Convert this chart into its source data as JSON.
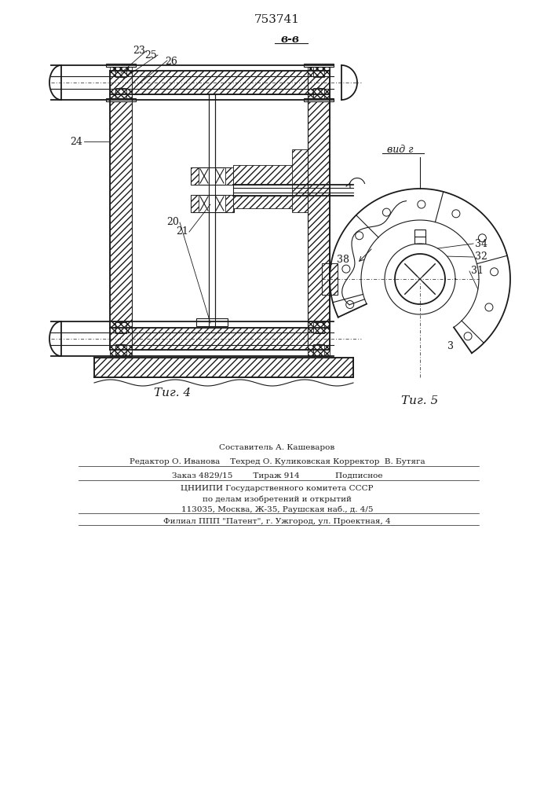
{
  "patent_number": "753741",
  "fig4_caption": "Τиг. 4",
  "fig5_caption": "Τиг. 5",
  "view_label": "вид г",
  "section_label": "в-в",
  "bg_color": "#ffffff",
  "line_color": "#1a1a1a",
  "footer_lines": [
    "Составитель А. Кашеваров",
    "Редактор О. Иванова    Техред О. Куликовская Корректор  В. Бутяга",
    "Заказ 4829/15        Тираж 914              Подписное",
    "ЦНИИПИ Государственного комитета СССР",
    "по делам изобретений и открытий",
    "113035, Москва, Ж-35, Раушская наб., д. 4/5",
    "Филиал ППП \"Патент\", г. Ужгород, ул. Проектная, 4"
  ]
}
